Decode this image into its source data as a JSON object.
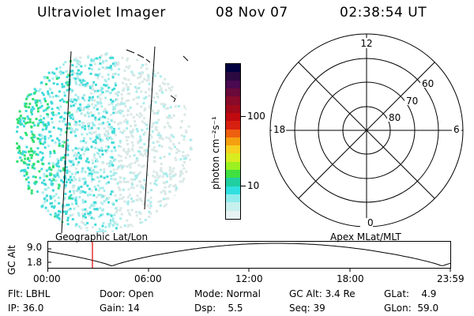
{
  "header": {
    "title": "Ultraviolet Imager",
    "date": "08 Nov 07",
    "time": "02:38:54 UT"
  },
  "colorbar": {
    "unit_label": "photon cm⁻²s⁻¹",
    "ticks": [
      "100",
      "10"
    ],
    "colors": [
      "#000040",
      "#2a0a40",
      "#4a0a50",
      "#6a0a3a",
      "#8a0a2a",
      "#a00a1a",
      "#c00a10",
      "#d82010",
      "#ee6010",
      "#f4a010",
      "#f6d020",
      "#d8ec20",
      "#9cf020",
      "#40e040",
      "#20d0a0",
      "#30e0e0",
      "#90ecec",
      "#c8f0ee",
      "#e8f4f4"
    ]
  },
  "image_panel": {
    "label": "Geographic Lat/Lon",
    "colors": {
      "bright": "#30e070",
      "mid": "#40dada",
      "pale": "#a8ecec",
      "faint": "#d8e8e6"
    }
  },
  "polar_plot": {
    "label": "Apex MLat/MLT",
    "mlt_labels": {
      "top": "12",
      "left": "18",
      "right": "6",
      "bottom": "0"
    },
    "mlat_labels": [
      "60",
      "70",
      "80"
    ]
  },
  "altitude_strip": {
    "ylabel": "GC Alt",
    "y_ticks": [
      "9.0",
      "1.8"
    ],
    "x_ticks": [
      "00:00",
      "06:00",
      "12:00",
      "18:00",
      "23:59"
    ],
    "marker_color": "#e00000"
  },
  "info": {
    "flt": "Flt: LBHL",
    "ip": "IP: 36.0",
    "door": "Door: Open",
    "gain": "Gain: 14",
    "mode": "Mode: Normal",
    "dsp": "Dsp:    5.5",
    "gcalt": "GC Alt: 3.4 Re",
    "seq": "Seq: 39",
    "glat": "GLat:    4.9",
    "glon": "GLon:  59.0"
  }
}
